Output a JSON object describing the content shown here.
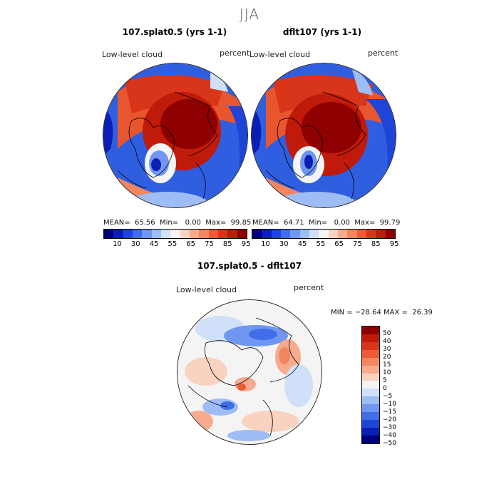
{
  "season": "JJA",
  "panels": [
    {
      "title": "107.splat0.5 (yrs 1-1)",
      "field": "Low-level cloud",
      "units": "percent",
      "stats": "MEAN=  65.56  Min=   0.00  Max=  99.85"
    },
    {
      "title": "dflt107 (yrs 1-1)",
      "field": "Low-level cloud",
      "units": "percent",
      "stats": "MEAN=  64.71  Min=   0.00  Max=  99.79"
    },
    {
      "title": "107.splat0.5 - dflt107",
      "field": "Low-level cloud",
      "units": "percent",
      "stats": "MIN = −28.64 MAX =  26.39"
    }
  ],
  "chart_data": [
    {
      "type": "heatmap",
      "projection": "north polar stereographic",
      "title": "107.splat0.5 (yrs 1-1)",
      "field": "Low-level cloud",
      "units": "percent",
      "mean": 65.56,
      "min": 0.0,
      "max": 99.85,
      "colorbar_ticks": [
        "10",
        "30",
        "45",
        "55",
        "65",
        "75",
        "85",
        "95"
      ]
    },
    {
      "type": "heatmap",
      "projection": "north polar stereographic",
      "title": "dflt107 (yrs 1-1)",
      "field": "Low-level cloud",
      "units": "percent",
      "mean": 64.71,
      "min": 0.0,
      "max": 99.79,
      "colorbar_ticks": [
        "10",
        "30",
        "45",
        "55",
        "65",
        "75",
        "85",
        "95"
      ]
    },
    {
      "type": "heatmap",
      "projection": "north polar stereographic",
      "title": "107.splat0.5 - dflt107",
      "field": "Low-level cloud",
      "units": "percent",
      "min": -28.64,
      "max": 26.39,
      "colorbar_ticks": [
        "50",
        "40",
        "30",
        "20",
        "15",
        "10",
        "5",
        "0",
        "−5",
        "−10",
        "−15",
        "−20",
        "−30",
        "−40",
        "−50"
      ]
    }
  ],
  "colors": {
    "abs_scale": [
      "#00007a",
      "#0b1fb4",
      "#1f45d8",
      "#3f6ee8",
      "#6f96f0",
      "#9fbdf5",
      "#cfe0f8",
      "#f4f4f4",
      "#f9d2c0",
      "#f6ab8c",
      "#f2865f",
      "#ea5c36",
      "#d9351a",
      "#c01a0a",
      "#8f0000"
    ],
    "diff_scale": [
      "#8f0000",
      "#c01a0a",
      "#d9351a",
      "#ea5c36",
      "#f2865f",
      "#f6ab8c",
      "#f9d2c0",
      "#f4f4f4",
      "#cfe0f8",
      "#9fbdf5",
      "#6f96f0",
      "#3f6ee8",
      "#1f45d8",
      "#0b1fb4",
      "#00007a"
    ]
  }
}
